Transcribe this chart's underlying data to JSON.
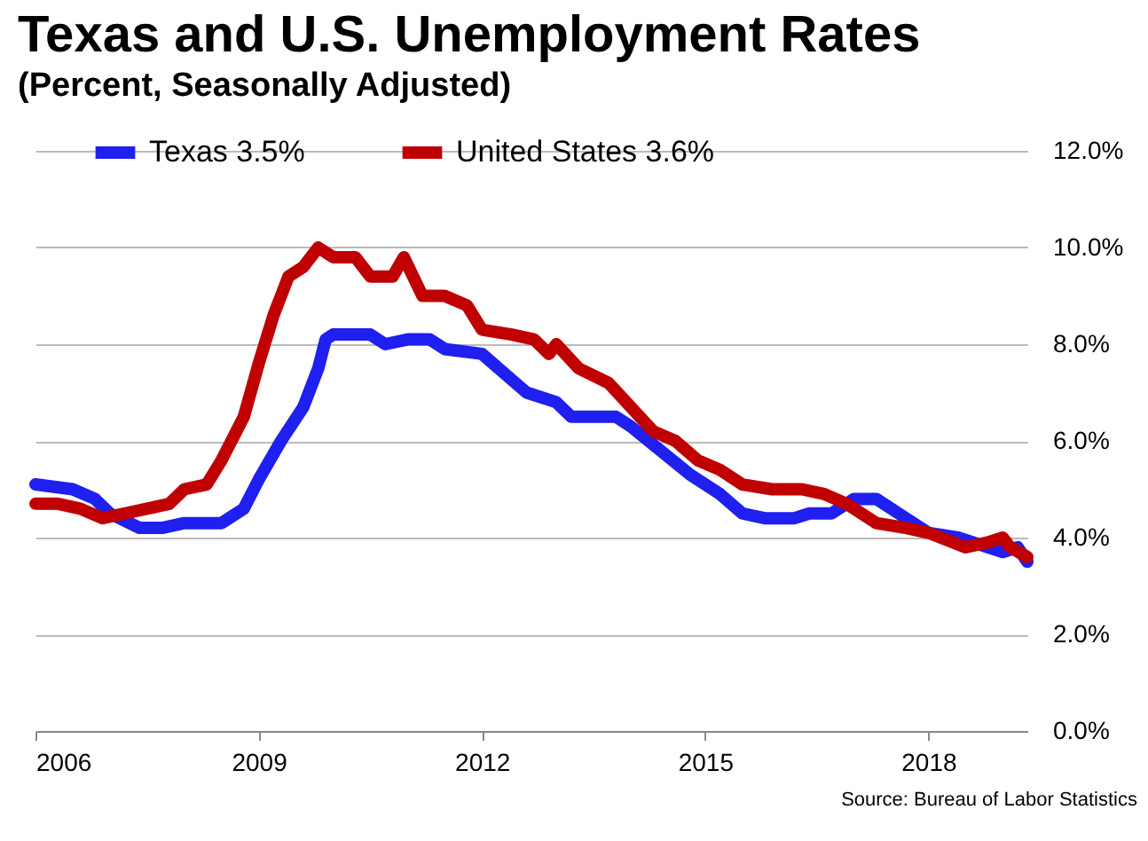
{
  "chart_data": {
    "type": "line",
    "title": "Texas and U.S. Unemployment Rates",
    "subtitle": "(Percent, Seasonally Adjusted)",
    "annotations": [
      "Source: Bureau of Labor Statistics"
    ],
    "series": [
      {
        "name": "Texas   3.5%",
        "color": "#1f1fef",
        "x": [
          2006.0,
          2006.5,
          2006.8,
          2007.0,
          2007.4,
          2007.7,
          2008.0,
          2008.5,
          2008.8,
          2009.0,
          2009.3,
          2009.6,
          2009.8,
          2009.9,
          2010.0,
          2010.5,
          2010.7,
          2011.0,
          2011.3,
          2011.5,
          2012.0,
          2012.3,
          2012.6,
          2013.0,
          2013.2,
          2013.8,
          2014.0,
          2014.4,
          2014.8,
          2015.2,
          2015.5,
          2015.8,
          2016.2,
          2016.4,
          2016.7,
          2017.0,
          2017.3,
          2017.6,
          2018.0,
          2018.4,
          2018.8,
          2019.0,
          2019.2,
          2019.33
        ],
        "values": [
          5.1,
          5.0,
          4.8,
          4.5,
          4.2,
          4.2,
          4.3,
          4.3,
          4.6,
          5.2,
          6.0,
          6.7,
          7.5,
          8.1,
          8.2,
          8.2,
          8.0,
          8.1,
          8.1,
          7.9,
          7.8,
          7.4,
          7.0,
          6.8,
          6.5,
          6.5,
          6.3,
          5.8,
          5.3,
          4.9,
          4.5,
          4.4,
          4.4,
          4.5,
          4.5,
          4.8,
          4.8,
          4.5,
          4.1,
          4.0,
          3.8,
          3.7,
          3.8,
          3.5
        ]
      },
      {
        "name": "United States   3.6%",
        "color": "#c00000",
        "x": [
          2006.0,
          2006.3,
          2006.6,
          2006.9,
          2007.2,
          2007.5,
          2007.8,
          2008.0,
          2008.3,
          2008.5,
          2008.8,
          2009.0,
          2009.2,
          2009.4,
          2009.6,
          2009.8,
          2010.0,
          2010.3,
          2010.5,
          2010.8,
          2010.95,
          2011.2,
          2011.5,
          2011.8,
          2012.0,
          2012.4,
          2012.7,
          2012.9,
          2013.0,
          2013.3,
          2013.7,
          2014.0,
          2014.3,
          2014.6,
          2014.9,
          2015.2,
          2015.5,
          2015.9,
          2016.3,
          2016.6,
          2016.9,
          2017.3,
          2017.7,
          2018.0,
          2018.5,
          2018.8,
          2019.0,
          2019.1,
          2019.33
        ],
        "values": [
          4.7,
          4.7,
          4.6,
          4.4,
          4.5,
          4.6,
          4.7,
          5.0,
          5.1,
          5.6,
          6.5,
          7.6,
          8.6,
          9.4,
          9.6,
          10.0,
          9.8,
          9.8,
          9.4,
          9.4,
          9.8,
          9.0,
          9.0,
          8.8,
          8.3,
          8.2,
          8.1,
          7.8,
          8.0,
          7.5,
          7.2,
          6.7,
          6.2,
          6.0,
          5.6,
          5.4,
          5.1,
          5.0,
          5.0,
          4.9,
          4.7,
          4.3,
          4.2,
          4.1,
          3.8,
          3.9,
          4.0,
          3.8,
          3.6
        ]
      }
    ],
    "xlim": [
      2006,
      2019.33
    ],
    "xticks": [
      2006,
      2009,
      2012,
      2015,
      2018
    ],
    "ylim": [
      0,
      12
    ],
    "yticks": [
      {
        "value": 0,
        "label": "0.0%"
      },
      {
        "value": 2,
        "label": "2.0%"
      },
      {
        "value": 4,
        "label": "4.0%"
      },
      {
        "value": 6,
        "label": "6.0%"
      },
      {
        "value": 8,
        "label": "8.0%"
      },
      {
        "value": 10,
        "label": "10.0%"
      },
      {
        "value": 12,
        "label": "12.0%"
      }
    ],
    "grid": "y",
    "legend": "top left",
    "line_style": "solid",
    "marker": "none"
  }
}
